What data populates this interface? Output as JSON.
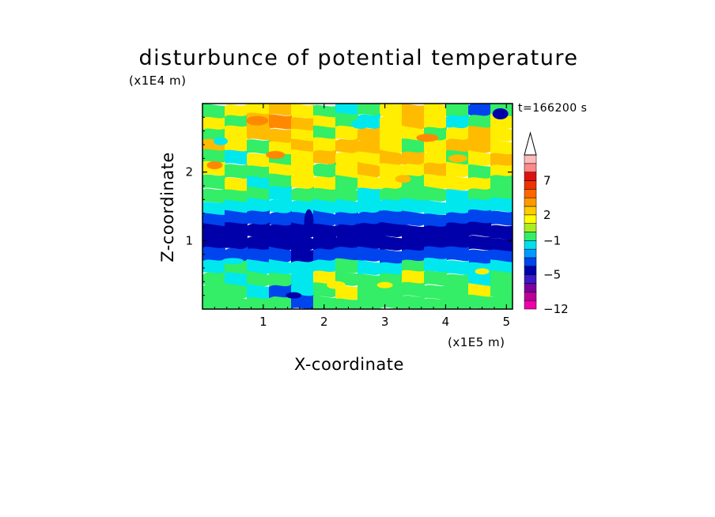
{
  "chart_data": {
    "type": "heatmap",
    "title": "disturbunce of potential temperature",
    "xlabel": "X-coordinate",
    "ylabel": "Z-coordinate",
    "x_unit_label": "(x1E5 m)",
    "y_unit_label": "(x1E4 m)",
    "time_label": "t=166200 s",
    "x_ticks": [
      "1",
      "2",
      "3",
      "4",
      "5"
    ],
    "y_ticks": [
      "1",
      "2"
    ],
    "xlim": [
      0,
      5.1
    ],
    "ylim": [
      0,
      3.0
    ],
    "colorbar": {
      "levels": [
        -12,
        -11,
        -9,
        -7,
        -5,
        -4,
        -3,
        -2,
        -1,
        0,
        1,
        2,
        3,
        5,
        6,
        7,
        8,
        9,
        10
      ],
      "colors": [
        "#ee00aa",
        "#bb0099",
        "#7a00a0",
        "#3a1ac8",
        "#0000aa",
        "#0044ee",
        "#0099ff",
        "#00e0ee",
        "#33ee66",
        "#aaee22",
        "#ffff00",
        "#ffcc00",
        "#ff9900",
        "#ff6600",
        "#ee3300",
        "#dd1111",
        "#ff8888",
        "#ffbbbb"
      ],
      "tick_labels": [
        "7",
        "2",
        "-1",
        "-5",
        "-12"
      ],
      "extend": "max"
    },
    "rows_top_to_bottom": [
      {
        "z": 2.9,
        "pattern": [
          "green",
          "yellow",
          "yellow",
          "orange",
          "yellow",
          "green",
          "cyan",
          "green",
          "yellow",
          "orange",
          "yellow",
          "green",
          "blue",
          "green"
        ]
      },
      {
        "z": 2.7,
        "pattern": [
          "yellow",
          "green",
          "orange",
          "darkorange",
          "orange",
          "yellow",
          "green",
          "cyan",
          "yellow",
          "orange",
          "yellow",
          "cyan",
          "green",
          "yellow"
        ]
      },
      {
        "z": 2.5,
        "pattern": [
          "green",
          "yellow",
          "orange",
          "orange",
          "yellow",
          "green",
          "yellow",
          "orange",
          "yellow",
          "yellow",
          "green",
          "yellow",
          "orange",
          "yellow"
        ]
      },
      {
        "z": 2.3,
        "pattern": [
          "orange",
          "yellow",
          "green",
          "yellow",
          "orange",
          "yellow",
          "orange",
          "orange",
          "yellow",
          "green",
          "yellow",
          "orange",
          "orange",
          "yellow"
        ]
      },
      {
        "z": 2.1,
        "pattern": [
          "green",
          "cyan",
          "yellow",
          "green",
          "yellow",
          "orange",
          "yellow",
          "yellow",
          "orange",
          "orange",
          "yellow",
          "green",
          "yellow",
          "orange"
        ]
      },
      {
        "z": 1.9,
        "pattern": [
          "yellow",
          "green",
          "green",
          "yellow",
          "yellow",
          "green",
          "yellow",
          "orange",
          "yellow",
          "yellow",
          "orange",
          "yellow",
          "green",
          "yellow"
        ]
      },
      {
        "z": 1.7,
        "pattern": [
          "green",
          "yellow",
          "cyan",
          "green",
          "yellow",
          "yellow",
          "green",
          "yellow",
          "yellow",
          "green",
          "yellow",
          "yellow",
          "yellow",
          "green"
        ]
      },
      {
        "z": 1.5,
        "pattern": [
          "green",
          "green",
          "green",
          "cyan",
          "green",
          "green",
          "green",
          "cyan",
          "green",
          "green",
          "green",
          "cyan",
          "green",
          "green"
        ]
      },
      {
        "z": 1.35,
        "pattern": [
          "cyan",
          "cyan",
          "cyan",
          "cyan",
          "cyan",
          "cyan",
          "cyan",
          "cyan",
          "cyan",
          "cyan",
          "cyan",
          "cyan",
          "cyan",
          "cyan"
        ]
      },
      {
        "z": 1.2,
        "pattern": [
          "blue",
          "blue",
          "blue",
          "blue",
          "blue",
          "blue",
          "blue",
          "blue",
          "blue",
          "blue",
          "blue",
          "blue",
          "blue",
          "blue"
        ]
      },
      {
        "z": 1.0,
        "pattern": [
          "navy",
          "navy",
          "navy",
          "navy",
          "navy",
          "navy",
          "navy",
          "navy",
          "navy",
          "navy",
          "navy",
          "navy",
          "navy",
          "navy"
        ]
      },
      {
        "z": 0.8,
        "pattern": [
          "navy",
          "navy",
          "navy",
          "navy",
          "navy",
          "navy",
          "navy",
          "navy",
          "navy",
          "navy",
          "navy",
          "navy",
          "navy",
          "navy"
        ]
      },
      {
        "z": 0.65,
        "pattern": [
          "blue",
          "blue",
          "blue",
          "blue",
          "navy",
          "blue",
          "blue",
          "blue",
          "blue",
          "blue",
          "blue",
          "blue",
          "blue",
          "blue"
        ]
      },
      {
        "z": 0.5,
        "pattern": [
          "cyan",
          "green",
          "cyan",
          "cyan",
          "cyan",
          "cyan",
          "green",
          "cyan",
          "cyan",
          "green",
          "cyan",
          "cyan",
          "cyan",
          "cyan"
        ]
      },
      {
        "z": 0.35,
        "pattern": [
          "green",
          "cyan",
          "green",
          "green",
          "cyan",
          "yellow",
          "green",
          "green",
          "green",
          "yellow",
          "green",
          "green",
          "cyan",
          "green"
        ]
      },
      {
        "z": 0.2,
        "pattern": [
          "green",
          "green",
          "cyan",
          "blue",
          "cyan",
          "green",
          "yellow",
          "green",
          "green",
          "green",
          "green",
          "green",
          "yellow",
          "green"
        ]
      },
      {
        "z": 0.05,
        "pattern": [
          "green",
          "green",
          "green",
          "green",
          "blue",
          "green",
          "green",
          "green",
          "green",
          "green",
          "green",
          "green",
          "green",
          "green"
        ]
      }
    ]
  }
}
